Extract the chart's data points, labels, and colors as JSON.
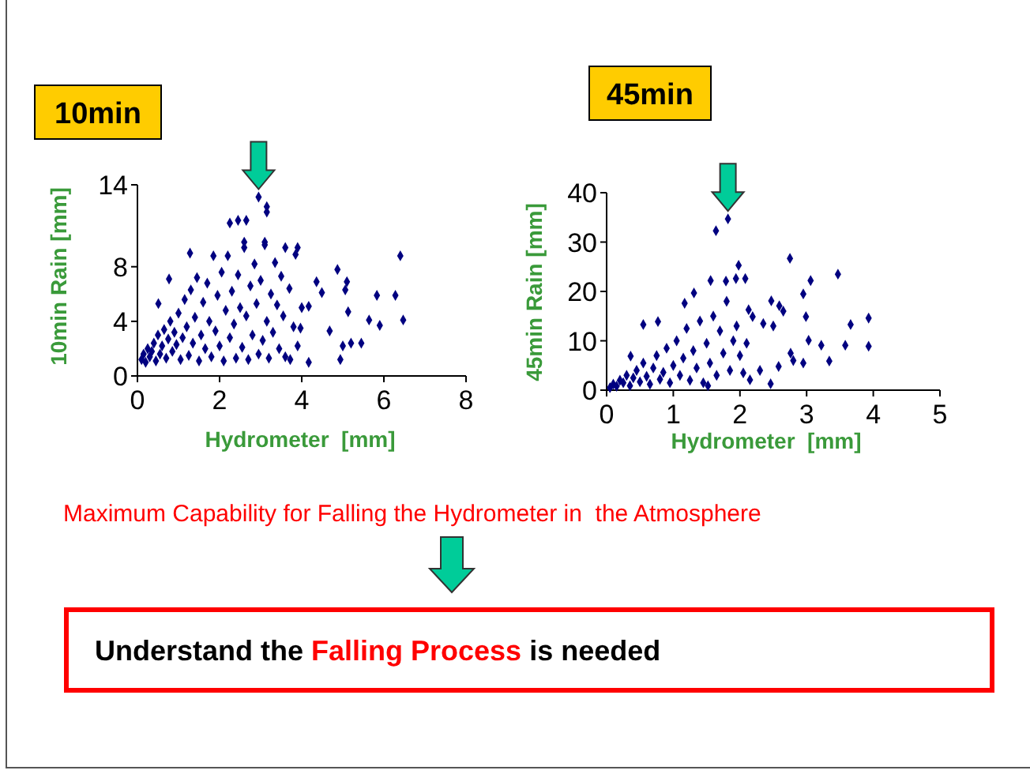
{
  "chart_data": [
    {
      "type": "scatter",
      "title": "10min",
      "xlabel": "Hydrometer  [mm]",
      "ylabel": "10min Rain [mm]",
      "marker": "diamond",
      "xlim": [
        0,
        8
      ],
      "xticks": [
        0,
        2,
        4,
        6,
        8
      ],
      "ylim": [
        0,
        14
      ],
      "yticks": [
        0,
        4,
        8,
        14
      ],
      "series": [
        {
          "color": "#000080",
          "x": [
            2.95,
            3.15,
            3.15,
            2.25,
            2.45,
            2.65,
            1.28,
            2.6,
            3.1,
            3.6,
            3.9,
            6.4,
            4.87,
            6.28,
            6.47,
            5.83,
            5.9,
            5.64,
            5.45,
            5.2,
            5.0,
            5.13,
            5.1,
            5.06,
            4.68,
            4.36,
            4.49,
            4.17,
            3.97,
            4.17,
            4.94,
            3.72,
            0.77,
            0.51,
            0.1,
            0.15,
            0.2,
            0.25,
            0.3,
            0.35,
            0.4,
            0.45,
            0.5,
            0.55,
            0.6,
            0.65,
            0.7,
            0.75,
            0.8,
            0.85,
            0.9,
            0.95,
            1.0,
            1.05,
            1.1,
            1.15,
            1.2,
            1.25,
            1.3,
            1.35,
            1.4,
            1.45,
            1.5,
            1.55,
            1.6,
            1.65,
            1.7,
            1.75,
            1.8,
            1.85,
            1.9,
            1.95,
            2.0,
            2.05,
            2.1,
            2.15,
            2.2,
            2.25,
            2.3,
            2.35,
            2.4,
            2.45,
            2.5,
            2.55,
            2.6,
            2.65,
            2.7,
            2.75,
            2.8,
            2.85,
            2.9,
            2.95,
            3.0,
            3.05,
            3.1,
            3.15,
            3.2,
            3.25,
            3.3,
            3.35,
            3.4,
            3.45,
            3.5,
            3.55,
            3.6,
            3.7,
            3.8,
            3.85,
            3.9,
            4.0
          ],
          "values": [
            13.1,
            12.4,
            12.0,
            11.2,
            11.4,
            11.4,
            9.0,
            9.8,
            9.8,
            9.4,
            9.4,
            8.8,
            7.8,
            5.9,
            4.1,
            5.9,
            3.7,
            4.1,
            2.4,
            2.4,
            2.2,
            4.7,
            6.9,
            6.3,
            3.3,
            6.9,
            6.1,
            5.1,
            3.5,
            1.0,
            1.2,
            1.2,
            7.1,
            5.3,
            1.2,
            1.6,
            1.0,
            2.0,
            1.4,
            1.8,
            2.4,
            1.1,
            3.0,
            1.6,
            2.2,
            3.4,
            1.3,
            2.7,
            4.0,
            1.8,
            3.2,
            2.3,
            4.6,
            1.2,
            2.8,
            5.6,
            3.6,
            1.5,
            6.3,
            2.4,
            4.3,
            7.2,
            1.1,
            3.0,
            5.4,
            2.0,
            6.8,
            4.0,
            1.4,
            8.8,
            3.3,
            5.9,
            2.2,
            7.6,
            1.1,
            4.8,
            8.8,
            2.8,
            6.2,
            3.8,
            1.3,
            7.4,
            5.0,
            2.1,
            9.4,
            4.4,
            1.2,
            6.6,
            3.0,
            8.2,
            5.3,
            1.6,
            7.0,
            2.6,
            9.6,
            4.0,
            1.3,
            6.0,
            3.2,
            8.3,
            5.2,
            2.0,
            7.3,
            4.4,
            1.4,
            6.4,
            3.6,
            8.9,
            2.2,
            5.0
          ]
        }
      ]
    },
    {
      "type": "scatter",
      "title": "45min",
      "xlabel": "Hydrometer  [mm]",
      "ylabel": "45min Rain [mm]",
      "marker": "diamond",
      "xlim": [
        0,
        5
      ],
      "xticks": [
        0,
        1,
        2,
        3,
        4,
        5
      ],
      "ylim": [
        0,
        40
      ],
      "yticks": [
        0,
        10,
        20,
        30,
        40
      ],
      "series": [
        {
          "color": "#000080",
          "x": [
            1.82,
            1.64,
            2.75,
            3.47,
            1.98,
            1.56,
            1.79,
            1.94,
            2.08,
            3.06,
            2.95,
            3.93,
            3.93,
            3.66,
            3.58,
            3.34,
            3.22,
            3.03,
            2.99,
            2.47,
            2.59,
            2.13,
            2.19,
            2.46,
            2.15,
            2.58,
            2.76,
            1.17,
            1.31,
            0.55,
            0.77,
            0.36,
            1.52,
            0.05,
            0.1,
            0.15,
            0.2,
            0.25,
            0.3,
            0.35,
            0.4,
            0.45,
            0.5,
            0.55,
            0.6,
            0.65,
            0.7,
            0.75,
            0.8,
            0.85,
            0.9,
            0.95,
            1.0,
            1.05,
            1.1,
            1.15,
            1.2,
            1.25,
            1.3,
            1.35,
            1.4,
            1.45,
            1.5,
            1.55,
            1.6,
            1.65,
            1.7,
            1.75,
            1.8,
            1.85,
            1.9,
            1.95,
            2.0,
            2.05,
            2.1,
            2.3,
            2.35,
            2.5,
            2.65,
            2.8,
            2.95
          ],
          "values": [
            34.7,
            32.3,
            26.7,
            23.5,
            25.3,
            22.2,
            22.1,
            22.6,
            22.6,
            22.2,
            19.5,
            14.6,
            8.9,
            13.3,
            9.1,
            5.9,
            9.1,
            10.1,
            14.9,
            18.1,
            17.1,
            16.3,
            14.9,
            1.3,
            2.1,
            4.8,
            7.5,
            17.6,
            19.7,
            13.3,
            13.9,
            6.9,
            0.9,
            0.5,
            1.2,
            0.8,
            2.0,
            1.5,
            3.0,
            0.9,
            2.5,
            4.0,
            1.7,
            5.5,
            2.8,
            1.2,
            4.5,
            7.0,
            2.2,
            3.6,
            8.5,
            1.5,
            5.0,
            10.0,
            3.0,
            6.5,
            12.5,
            2.0,
            8.0,
            4.5,
            14.0,
            1.5,
            9.5,
            5.5,
            15.0,
            3.0,
            12.0,
            7.5,
            18.0,
            4.0,
            10.0,
            13.0,
            7.0,
            3.5,
            9.5,
            4.0,
            13.5,
            13.0,
            16.0,
            6.0,
            5.5
          ]
        }
      ]
    },
    {
      "type": "other",
      "annotations": [
        "Maximum Capability for Falling the Hydrometer in  the Atmosphere",
        "Understand the ",
        "Falling Process",
        " is needed"
      ]
    }
  ]
}
